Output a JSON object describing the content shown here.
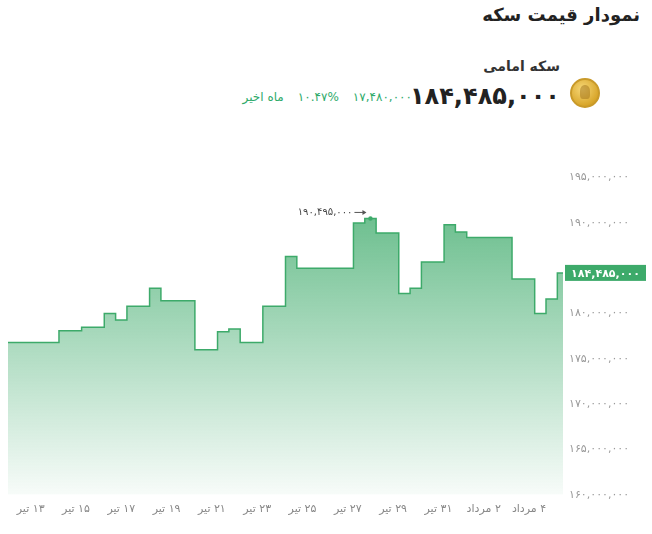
{
  "header": {
    "name": "سکه امامی",
    "price": "۱۸۴,۴۸۵,۰۰۰",
    "change": "۱۷,۴۸۰,۰۰۰",
    "change_percent": "۱۰.۴۷%",
    "period": "ماه اخیر"
  },
  "chart_data": {
    "type": "line",
    "title": "نمودار قیمت سکه",
    "categories": [
      null,
      null,
      "۱۳ تیر",
      null,
      null,
      null,
      "۱۵ تیر",
      null,
      null,
      null,
      "۱۷ تیر",
      null,
      null,
      null,
      "۱۹ تیر",
      null,
      null,
      null,
      "۲۱ تیر",
      null,
      null,
      null,
      "۲۳ تیر",
      null,
      null,
      null,
      "۲۵ تیر",
      null,
      null,
      null,
      "۲۷ تیر",
      null,
      null,
      null,
      "۲۹ تیر",
      null,
      null,
      null,
      "۳۱ تیر",
      null,
      null,
      null,
      "۲ مرداد",
      null,
      null,
      null,
      "۴ مرداد",
      null,
      null,
      null
    ],
    "values": [
      176800000,
      176800000,
      176800000,
      176800000,
      176800000,
      178100000,
      178100000,
      178500000,
      178500000,
      180000000,
      179300000,
      180800000,
      180800000,
      182800000,
      181400000,
      181400000,
      181400000,
      176000000,
      176000000,
      178000000,
      178300000,
      176800000,
      176800000,
      180800000,
      180800000,
      186300000,
      185000000,
      185000000,
      185000000,
      185000000,
      185000000,
      190000000,
      190495000,
      188900000,
      188900000,
      182200000,
      182800000,
      185700000,
      185700000,
      189800000,
      189000000,
      188400000,
      188400000,
      188400000,
      188400000,
      183800000,
      183800000,
      180000000,
      181600000,
      184485000
    ],
    "color": "#3daa6a",
    "line_style": "stepped",
    "ylim": [
      160000000,
      195000000
    ],
    "yticks": [
      {
        "value": 160000000,
        "label": "۱۶۰,۰۰۰,۰۰۰"
      },
      {
        "value": 165000000,
        "label": "۱۶۵,۰۰۰,۰۰۰"
      },
      {
        "value": 170000000,
        "label": "۱۷۰,۰۰۰,۰۰۰"
      },
      {
        "value": 175000000,
        "label": "۱۷۵,۰۰۰,۰۰۰"
      },
      {
        "value": 180000000,
        "label": "۱۸۰,۰۰۰,۰۰۰"
      },
      {
        "value": 190000000,
        "label": "۱۹۰,۰۰۰,۰۰۰"
      },
      {
        "value": 195000000,
        "label": "۱۹۵,۰۰۰,۰۰۰"
      }
    ],
    "grid": false,
    "annotations": [
      {
        "text": "۱۹۰,۴۹۵,۰۰۰",
        "value": 190495000
      }
    ],
    "end_label": "۱۸۴,۴۸۵,۰۰۰"
  }
}
